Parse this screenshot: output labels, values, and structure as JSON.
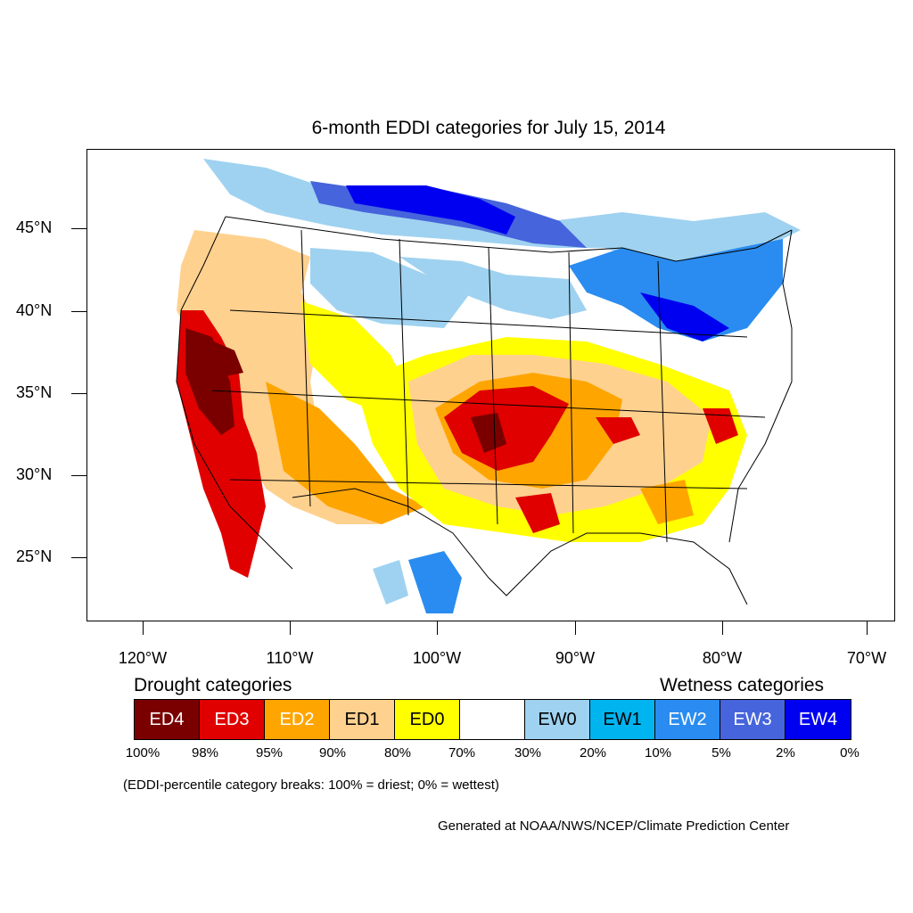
{
  "title": "6-month EDDI categories for July 15, 2014",
  "lat_labels": [
    "45°N",
    "40°N",
    "35°N",
    "30°N",
    "25°N"
  ],
  "lon_labels": [
    "120°W",
    "110°W",
    "100°W",
    "90°W",
    "80°W",
    "70°W"
  ],
  "legend": {
    "drought_heading": "Drought categories",
    "wetness_heading": "Wetness categories",
    "categories": [
      {
        "label": "ED4",
        "color": "#7a0000",
        "text_color": "#ffffff"
      },
      {
        "label": "ED3",
        "color": "#e00000",
        "text_color": "#ffffff"
      },
      {
        "label": "ED2",
        "color": "#ffa500",
        "text_color": "#ffffff"
      },
      {
        "label": "ED1",
        "color": "#ffd18f",
        "text_color": "#000000"
      },
      {
        "label": "ED0",
        "color": "#ffff00",
        "text_color": "#000000"
      },
      {
        "label": "",
        "color": "#ffffff",
        "text_color": "#000000"
      },
      {
        "label": "EW0",
        "color": "#9fd2f0",
        "text_color": "#000000"
      },
      {
        "label": "EW1",
        "color": "#00b4f0",
        "text_color": "#000000"
      },
      {
        "label": "EW2",
        "color": "#2a8cf0",
        "text_color": "#ffffff"
      },
      {
        "label": "EW3",
        "color": "#4664dc",
        "text_color": "#ffffff"
      },
      {
        "label": "EW4",
        "color": "#0000f0",
        "text_color": "#ffffff"
      }
    ],
    "breaks": [
      "100%",
      "98%",
      "95%",
      "90%",
      "80%",
      "70%",
      "30%",
      "20%",
      "10%",
      "5%",
      "2%",
      "0%"
    ]
  },
  "note": "(EDDI-percentile category breaks: 100% = driest; 0% = wettest)",
  "credit": "Generated at NOAA/NWS/NCEP/Climate Prediction Center"
}
